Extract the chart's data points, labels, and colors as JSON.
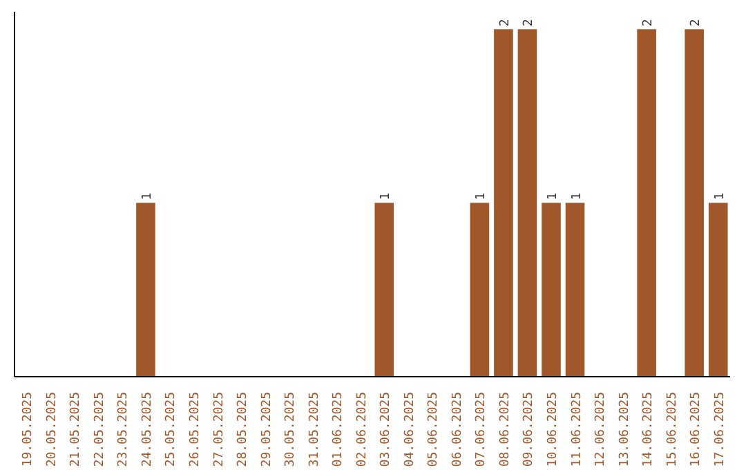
{
  "chart_data": {
    "type": "bar",
    "categories": [
      "19.05.2025",
      "20.05.2025",
      "21.05.2025",
      "22.05.2025",
      "23.05.2025",
      "24.05.2025",
      "25.05.2025",
      "26.05.2025",
      "27.05.2025",
      "28.05.2025",
      "29.05.2025",
      "30.05.2025",
      "31.05.2025",
      "01.06.2025",
      "02.06.2025",
      "03.06.2025",
      "04.06.2025",
      "05.06.2025",
      "06.06.2025",
      "07.06.2025",
      "08.06.2025",
      "09.06.2025",
      "10.06.2025",
      "11.06.2025",
      "12.06.2025",
      "13.06.2025",
      "14.06.2025",
      "15.06.2025",
      "16.06.2025",
      "17.06.2025"
    ],
    "values": [
      0,
      0,
      0,
      0,
      0,
      1,
      0,
      0,
      0,
      0,
      0,
      0,
      0,
      0,
      0,
      1,
      0,
      0,
      0,
      1,
      2,
      2,
      1,
      1,
      0,
      0,
      2,
      0,
      2,
      1
    ],
    "value_labels": [
      null,
      null,
      null,
      null,
      null,
      "1",
      null,
      null,
      null,
      null,
      null,
      null,
      null,
      null,
      null,
      "1",
      null,
      null,
      null,
      "1",
      "2",
      "2",
      "1",
      "1",
      null,
      null,
      "2",
      null,
      "2",
      "1"
    ],
    "color": "#a0582a",
    "tick_labels": "x",
    "grid": false
  }
}
